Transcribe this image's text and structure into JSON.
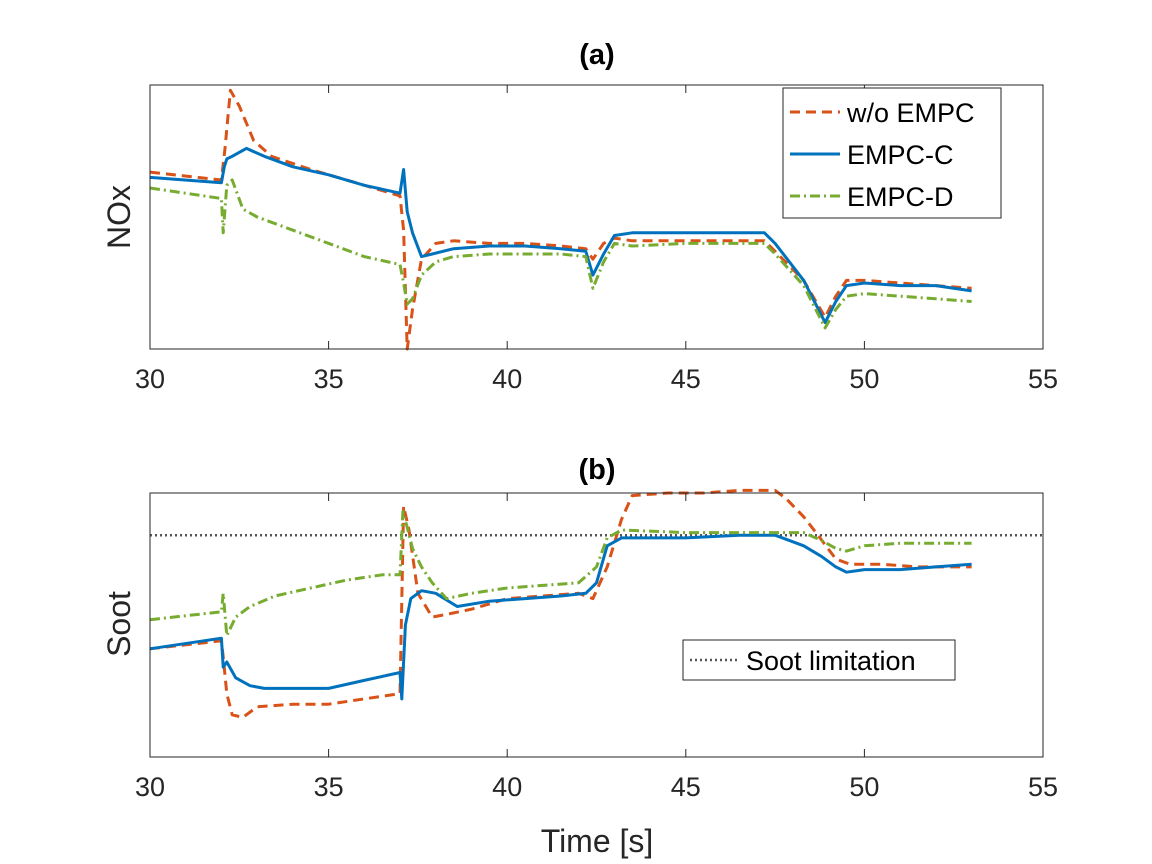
{
  "colors": {
    "wo_empc": "#D95319",
    "empc_c": "#0072BD",
    "empc_d": "#77AC30",
    "limit": "#555555",
    "axis": "#262626"
  },
  "chart_data": [
    {
      "type": "line",
      "title": "(a)",
      "xlabel": "",
      "ylabel": "NOx",
      "xlim": [
        30,
        55
      ],
      "ylim": [
        0,
        1
      ],
      "x_ticks": [
        30,
        35,
        40,
        45,
        50,
        55
      ],
      "y_ticks": [],
      "legend_position": "top-right",
      "series": [
        {
          "name": "w/o EMPC",
          "style": "dashed",
          "x": [
            30,
            32.0,
            32.1,
            32.25,
            32.5,
            32.9,
            33.4,
            34.5,
            35.5,
            36.5,
            37.0,
            37.1,
            37.2,
            37.35,
            37.6,
            38.0,
            38.5,
            39.5,
            40.5,
            41.5,
            42.2,
            42.4,
            42.7,
            43.0,
            43.5,
            45.0,
            46.5,
            47.2,
            47.5,
            48.3,
            48.9,
            49.2,
            49.5,
            50.0,
            51.0,
            52.0,
            53.0
          ],
          "y": [
            0.67,
            0.64,
            0.76,
            0.98,
            0.92,
            0.79,
            0.73,
            0.68,
            0.64,
            0.6,
            0.58,
            0.45,
            0.0,
            0.15,
            0.34,
            0.4,
            0.41,
            0.4,
            0.4,
            0.39,
            0.38,
            0.34,
            0.4,
            0.42,
            0.41,
            0.41,
            0.41,
            0.41,
            0.37,
            0.26,
            0.12,
            0.2,
            0.26,
            0.26,
            0.25,
            0.24,
            0.23
          ]
        },
        {
          "name": "EMPC-C",
          "style": "solid",
          "x": [
            30,
            32.0,
            32.08,
            32.15,
            32.3,
            32.7,
            33.2,
            34.0,
            35.0,
            36.0,
            37.0,
            37.1,
            37.2,
            37.35,
            37.6,
            37.9,
            38.5,
            39.5,
            40.5,
            41.5,
            42.2,
            42.4,
            42.7,
            43.0,
            43.5,
            45.0,
            46.5,
            47.2,
            47.5,
            48.3,
            48.9,
            49.2,
            49.5,
            50.0,
            51.0,
            52.0,
            53.0
          ],
          "y": [
            0.65,
            0.63,
            0.69,
            0.72,
            0.73,
            0.76,
            0.73,
            0.69,
            0.66,
            0.62,
            0.59,
            0.68,
            0.52,
            0.44,
            0.35,
            0.36,
            0.38,
            0.39,
            0.39,
            0.38,
            0.37,
            0.28,
            0.36,
            0.43,
            0.44,
            0.44,
            0.44,
            0.44,
            0.4,
            0.26,
            0.1,
            0.18,
            0.24,
            0.25,
            0.24,
            0.24,
            0.22
          ]
        },
        {
          "name": "EMPC-D",
          "style": "dashdot",
          "x": [
            30,
            32.0,
            32.05,
            32.15,
            32.3,
            32.6,
            33.0,
            34.0,
            35.0,
            36.0,
            37.0,
            37.1,
            37.2,
            37.35,
            37.6,
            38.0,
            38.5,
            39.5,
            40.5,
            41.5,
            42.2,
            42.4,
            42.7,
            43.0,
            43.5,
            45.0,
            46.5,
            47.2,
            47.5,
            48.3,
            48.9,
            49.2,
            49.5,
            50.0,
            51.0,
            52.0,
            53.0
          ],
          "y": [
            0.61,
            0.57,
            0.44,
            0.62,
            0.64,
            0.53,
            0.5,
            0.45,
            0.4,
            0.35,
            0.32,
            0.25,
            0.17,
            0.19,
            0.28,
            0.33,
            0.35,
            0.36,
            0.36,
            0.36,
            0.35,
            0.23,
            0.33,
            0.4,
            0.39,
            0.4,
            0.4,
            0.4,
            0.36,
            0.24,
            0.08,
            0.15,
            0.2,
            0.21,
            0.2,
            0.19,
            0.18
          ]
        }
      ]
    },
    {
      "type": "line",
      "title": "(b)",
      "xlabel": "Time [s]",
      "ylabel": "Soot",
      "xlim": [
        30,
        55
      ],
      "ylim": [
        0,
        1
      ],
      "x_ticks": [
        30,
        35,
        40,
        45,
        50,
        55
      ],
      "y_ticks": [],
      "legend_position": "lower-right",
      "soot_limit": 0.84,
      "series": [
        {
          "name": "w/o EMPC",
          "style": "dashed",
          "x": [
            30,
            32.0,
            32.05,
            32.15,
            32.3,
            32.6,
            33.0,
            34.0,
            35.0,
            36.0,
            37.0,
            37.1,
            37.25,
            37.5,
            37.9,
            38.3,
            39.0,
            40.0,
            41.0,
            42.0,
            42.4,
            42.8,
            43.2,
            43.5,
            44.5,
            45.5,
            46.5,
            47.5,
            47.8,
            48.3,
            48.7,
            49.2,
            49.6,
            50.5,
            51.5,
            53.0
          ],
          "y": [
            0.41,
            0.44,
            0.38,
            0.24,
            0.16,
            0.15,
            0.19,
            0.2,
            0.2,
            0.22,
            0.24,
            0.95,
            0.86,
            0.62,
            0.53,
            0.54,
            0.56,
            0.6,
            0.61,
            0.62,
            0.6,
            0.72,
            0.9,
            0.99,
            1.0,
            1.0,
            1.01,
            1.01,
            0.98,
            0.91,
            0.84,
            0.75,
            0.73,
            0.73,
            0.72,
            0.72
          ]
        },
        {
          "name": "EMPC-C",
          "style": "solid",
          "x": [
            30,
            32.0,
            32.05,
            32.15,
            32.4,
            32.8,
            33.2,
            34.0,
            35.0,
            36.0,
            37.0,
            37.05,
            37.15,
            37.3,
            37.6,
            38.0,
            38.6,
            39.5,
            40.5,
            41.5,
            42.2,
            42.5,
            42.8,
            43.2,
            45.0,
            46.5,
            47.5,
            48.3,
            48.8,
            49.2,
            49.5,
            50.0,
            51.0,
            52.0,
            53.0
          ],
          "y": [
            0.41,
            0.45,
            0.34,
            0.36,
            0.3,
            0.27,
            0.26,
            0.26,
            0.26,
            0.29,
            0.32,
            0.22,
            0.5,
            0.6,
            0.63,
            0.62,
            0.57,
            0.59,
            0.6,
            0.61,
            0.62,
            0.66,
            0.8,
            0.83,
            0.83,
            0.84,
            0.84,
            0.8,
            0.76,
            0.72,
            0.7,
            0.71,
            0.71,
            0.72,
            0.73
          ]
        },
        {
          "name": "EMPC-D",
          "style": "dashdot",
          "x": [
            30,
            32.0,
            32.05,
            32.15,
            32.4,
            32.8,
            33.5,
            34.5,
            35.5,
            36.5,
            37.0,
            37.08,
            37.2,
            37.35,
            37.6,
            37.9,
            38.3,
            39.0,
            40.0,
            41.0,
            42.0,
            42.5,
            42.8,
            43.2,
            45.0,
            46.5,
            47.5,
            48.3,
            48.8,
            49.2,
            49.5,
            50.0,
            51.0,
            52.0,
            53.0
          ],
          "y": [
            0.52,
            0.55,
            0.62,
            0.46,
            0.53,
            0.57,
            0.61,
            0.64,
            0.67,
            0.69,
            0.69,
            0.93,
            0.87,
            0.79,
            0.72,
            0.66,
            0.6,
            0.62,
            0.64,
            0.65,
            0.66,
            0.72,
            0.83,
            0.86,
            0.85,
            0.85,
            0.85,
            0.85,
            0.82,
            0.79,
            0.78,
            0.8,
            0.81,
            0.81,
            0.81
          ]
        }
      ]
    }
  ],
  "legends": {
    "top": [
      "w/o EMPC",
      "EMPC-C",
      "EMPC-D"
    ],
    "bottom": [
      "Soot limitation"
    ]
  }
}
